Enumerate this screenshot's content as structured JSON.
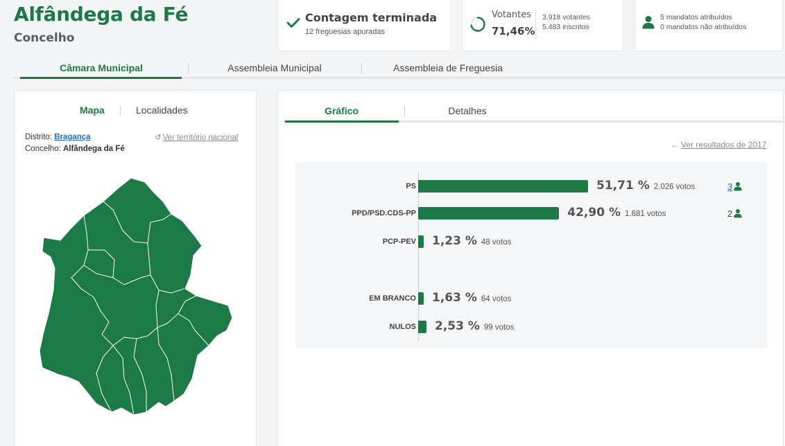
{
  "header": {
    "title": "Alfândega da Fé",
    "subtitle": "Concelho"
  },
  "count_card": {
    "title": "Contagem terminada",
    "subtitle": "12 freguesias apuradas"
  },
  "votes_card": {
    "label": "Votantes",
    "percent": "71,46%",
    "voters": "3.918 votantes",
    "registered": "5.483 inscritos",
    "turnout_fraction": 0.7146
  },
  "seats_card": {
    "assigned": "5 mandatos atribuídos",
    "unassigned": "0 mandatos não atribuídos"
  },
  "main_tabs": [
    {
      "label": "Câmara Municipal"
    },
    {
      "label": "Assembleia Municipal"
    },
    {
      "label": "Assembleia de Freguesia"
    }
  ],
  "left_panel": {
    "tabs": [
      {
        "label": "Mapa"
      },
      {
        "label": "Localidades"
      }
    ],
    "district_label": "Distrito:",
    "district_value": "Bragança",
    "municipality_label": "Concelho:",
    "municipality_value": "Alfândega da Fé",
    "national_link": "Ver território nacional"
  },
  "right_panel": {
    "tabs": [
      {
        "label": "Gráfico"
      },
      {
        "label": "Detalhes"
      }
    ],
    "prev_results_link": "Ver resultados de 2017"
  },
  "colors": {
    "accent": "#1b7a45",
    "link": "#1a73c9"
  },
  "chart_data": {
    "type": "bar",
    "orientation": "horizontal",
    "categories": [
      "PS",
      "PPD/PSD.CDS-PP",
      "PCP-PEV",
      "EM BRANCO",
      "NULOS"
    ],
    "values": [
      51.71,
      42.9,
      1.23,
      1.63,
      2.53
    ],
    "percent_labels": [
      "51,71 %",
      "42,90 %",
      "1,23 %",
      "1,63 %",
      "2,53 %"
    ],
    "vote_labels": [
      "2.026 votos",
      "1.681 votos",
      "48 votos",
      "64 votos",
      "99 votos"
    ],
    "seats": [
      "3",
      "2",
      "",
      "",
      ""
    ],
    "title": "",
    "xlabel": "",
    "ylabel": "",
    "xlim": [
      0,
      100
    ],
    "grid": false
  }
}
